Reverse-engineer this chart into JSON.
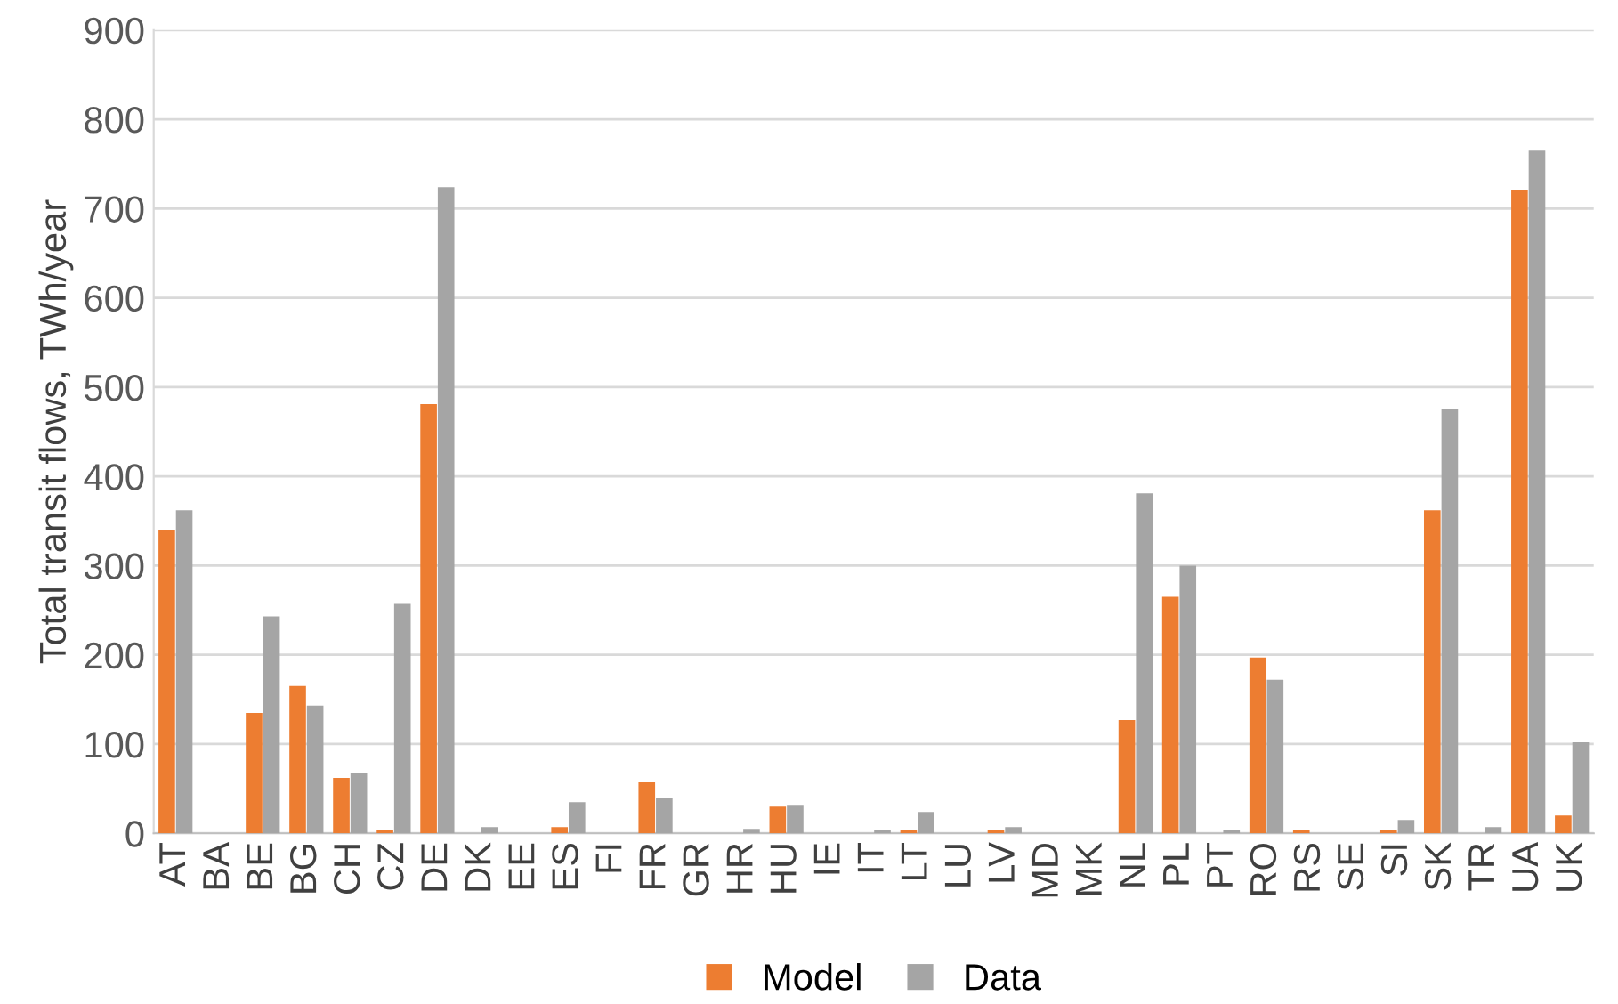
{
  "chart_data": {
    "type": "bar",
    "ylabel": "Total transit flows, TWh/year",
    "categories": [
      "AT",
      "BA",
      "BE",
      "BG",
      "CH",
      "CZ",
      "DE",
      "DK",
      "EE",
      "ES",
      "FI",
      "FR",
      "GR",
      "HR",
      "HU",
      "IE",
      "IT",
      "LT",
      "LU",
      "LV",
      "MD",
      "MK",
      "NL",
      "PL",
      "PT",
      "RO",
      "RS",
      "SE",
      "SI",
      "SK",
      "TR",
      "UA",
      "UK"
    ],
    "series": [
      {
        "name": "Model",
        "color": "#ed7d31",
        "values": [
          340,
          0,
          135,
          165,
          62,
          4,
          481,
          0,
          0,
          7,
          0,
          57,
          0,
          0,
          30,
          0,
          0,
          4,
          0,
          4,
          0,
          0,
          127,
          265,
          0,
          197,
          4,
          0,
          4,
          362,
          0,
          721,
          20
        ]
      },
      {
        "name": "Data",
        "color": "#a5a5a5",
        "values": [
          362,
          0,
          243,
          143,
          67,
          257,
          724,
          7,
          0,
          35,
          0,
          40,
          0,
          5,
          32,
          0,
          4,
          24,
          0,
          7,
          0,
          0,
          381,
          300,
          4,
          172,
          0,
          0,
          15,
          476,
          7,
          765,
          102
        ]
      }
    ],
    "ylim": [
      0,
      900
    ],
    "yticks": [
      0,
      100,
      200,
      300,
      400,
      500,
      600,
      700,
      800,
      900
    ],
    "grid": "y",
    "legend": "bottom"
  }
}
